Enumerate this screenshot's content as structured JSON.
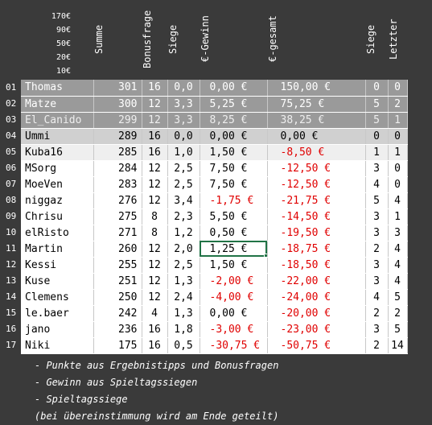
{
  "prizes": [
    "170€",
    "90€",
    "50€",
    "20€",
    "10€"
  ],
  "row_numbers": [
    "01",
    "02",
    "03",
    "04",
    "05",
    "06",
    "07",
    "08",
    "09",
    "10",
    "11",
    "12",
    "13",
    "14",
    "15",
    "16",
    "17"
  ],
  "headers": {
    "summe": "Summe",
    "bonusfrage": "Bonusfrage",
    "siege": "Siege",
    "gewinn": "€-Gewinn",
    "gesamt": "€-gesamt",
    "siege2": "Siege",
    "letzter": "Letzter"
  },
  "rows": [
    {
      "name": "Thomas",
      "summe": "301",
      "bonus": "16",
      "siege": "0,0",
      "gewinn": "0,00 €",
      "gesamt": "150,00 €",
      "siege2": "0",
      "letzter": "0",
      "tier": "top1"
    },
    {
      "name": "Matze",
      "summe": "300",
      "bonus": "12",
      "siege": "3,3",
      "gewinn": "5,25 €",
      "gesamt": "75,25 €",
      "siege2": "5",
      "letzter": "2",
      "tier": "top2"
    },
    {
      "name": "El_Canido",
      "summe": "299",
      "bonus": "12",
      "siege": "3,3",
      "gewinn": "8,25 €",
      "gesamt": "38,25 €",
      "siege2": "5",
      "letzter": "1",
      "tier": "top3"
    },
    {
      "name": "Ummi",
      "summe": "289",
      "bonus": "16",
      "siege": "0,0",
      "gewinn": "0,00 €",
      "gesamt": "0,00 €",
      "siege2": "0",
      "letzter": "0",
      "tier": "top4"
    },
    {
      "name": "Kuba16",
      "summe": "285",
      "bonus": "16",
      "siege": "1,0",
      "gewinn": "1,50 €",
      "gesamt": "-8,50 €",
      "siege2": "1",
      "letzter": "1",
      "tier": "top5"
    },
    {
      "name": "MSorg",
      "summe": "284",
      "bonus": "12",
      "siege": "2,5",
      "gewinn": "7,50 €",
      "gesamt": "-12,50 €",
      "siege2": "3",
      "letzter": "0",
      "tier": "normal"
    },
    {
      "name": "MoeVen",
      "summe": "283",
      "bonus": "12",
      "siege": "2,5",
      "gewinn": "7,50 €",
      "gesamt": "-12,50 €",
      "siege2": "4",
      "letzter": "0",
      "tier": "normal"
    },
    {
      "name": "niggaz",
      "summe": "276",
      "bonus": "12",
      "siege": "3,4",
      "gewinn": "-1,75 €",
      "gesamt": "-21,75 €",
      "siege2": "5",
      "letzter": "4",
      "tier": "normal"
    },
    {
      "name": "Chrisu",
      "summe": "275",
      "bonus": "8",
      "siege": "2,3",
      "gewinn": "5,50 €",
      "gesamt": "-14,50 €",
      "siege2": "3",
      "letzter": "1",
      "tier": "normal"
    },
    {
      "name": "elRisto",
      "summe": "271",
      "bonus": "8",
      "siege": "1,2",
      "gewinn": "0,50 €",
      "gesamt": "-19,50 €",
      "siege2": "3",
      "letzter": "3",
      "tier": "normal"
    },
    {
      "name": "Martin",
      "summe": "260",
      "bonus": "12",
      "siege": "2,0",
      "gewinn": "1,25 €",
      "gesamt": "-18,75 €",
      "siege2": "2",
      "letzter": "4",
      "tier": "normal"
    },
    {
      "name": "Kessi",
      "summe": "255",
      "bonus": "12",
      "siege": "2,5",
      "gewinn": "1,50 €",
      "gesamt": "-18,50 €",
      "siege2": "3",
      "letzter": "4",
      "tier": "normal"
    },
    {
      "name": "Kuse",
      "summe": "251",
      "bonus": "12",
      "siege": "1,3",
      "gewinn": "-2,00 €",
      "gesamt": "-22,00 €",
      "siege2": "3",
      "letzter": "4",
      "tier": "normal"
    },
    {
      "name": "Clemens",
      "summe": "250",
      "bonus": "12",
      "siege": "2,4",
      "gewinn": "-4,00 €",
      "gesamt": "-24,00 €",
      "siege2": "4",
      "letzter": "5",
      "tier": "normal"
    },
    {
      "name": "le.baer",
      "summe": "242",
      "bonus": "4",
      "siege": "1,3",
      "gewinn": "0,00 €",
      "gesamt": "-20,00 €",
      "siege2": "2",
      "letzter": "2",
      "tier": "normal"
    },
    {
      "name": "jano",
      "summe": "236",
      "bonus": "16",
      "siege": "1,8",
      "gewinn": "-3,00 €",
      "gesamt": "-23,00 €",
      "siege2": "3",
      "letzter": "5",
      "tier": "normal"
    },
    {
      "name": "Niki",
      "summe": "175",
      "bonus": "16",
      "siege": "0,5",
      "gewinn": "-30,75 €",
      "gesamt": "-50,75 €",
      "siege2": "2",
      "letzter": "14",
      "tier": "normal"
    }
  ],
  "selected_cell": {
    "row": 10,
    "col": "gewinn"
  },
  "notes": [
    "- Punkte aus Ergebnistipps und Bonusfragen",
    "- Gewinn aus Spieltagssiegen",
    "- Spieltagssiege",
    "(bei übereinstimmung wird am Ende geteilt)"
  ],
  "colors": {
    "background": "#3a3a3a",
    "top_rows": "#9a9a9a",
    "fourth_row": "#d0d0d0",
    "negative": "#e00000",
    "selection": "#217346"
  }
}
